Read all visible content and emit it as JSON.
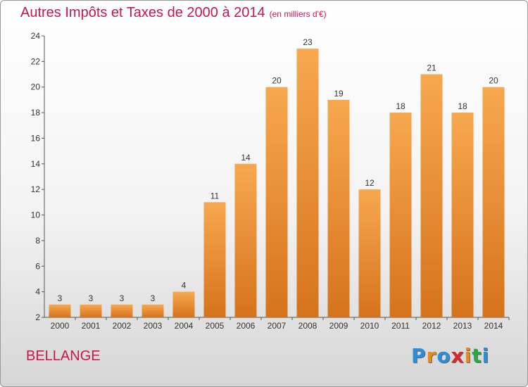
{
  "header": {
    "title": "Autres Impôts et Taxes de 2000 à 2014",
    "subtitle": "(en milliers d'€)"
  },
  "footer": {
    "commune": "BELLANGE",
    "logo_letters": [
      "P",
      "r",
      "o",
      "x",
      "i",
      "t",
      "i"
    ],
    "logo_colors": [
      "#2a8fd8",
      "#e88a1a",
      "#2a8fd8",
      "#d82a2a",
      "#e88a1a",
      "#2aa84a",
      "#2a8fd8"
    ]
  },
  "colors": {
    "bar_top": "#f7a84f",
    "bar_bottom": "#d6731c",
    "text": "#c8174a"
  },
  "chart_data": {
    "type": "bar",
    "title": "Autres Impôts et Taxes de 2000 à 2014",
    "subtitle": "(en milliers d'€)",
    "xlabel": "",
    "ylabel": "",
    "categories": [
      "2000",
      "2001",
      "2002",
      "2003",
      "2004",
      "2005",
      "2006",
      "2007",
      "2008",
      "2009",
      "2010",
      "2011",
      "2012",
      "2013",
      "2014"
    ],
    "values": [
      3,
      3,
      3,
      3,
      4,
      11,
      14,
      20,
      23,
      19,
      12,
      18,
      21,
      18,
      20
    ],
    "ylim": [
      2,
      24
    ],
    "yticks": [
      2,
      4,
      6,
      8,
      10,
      12,
      14,
      16,
      18,
      20,
      22,
      24
    ],
    "grid": false,
    "legend": "none"
  }
}
